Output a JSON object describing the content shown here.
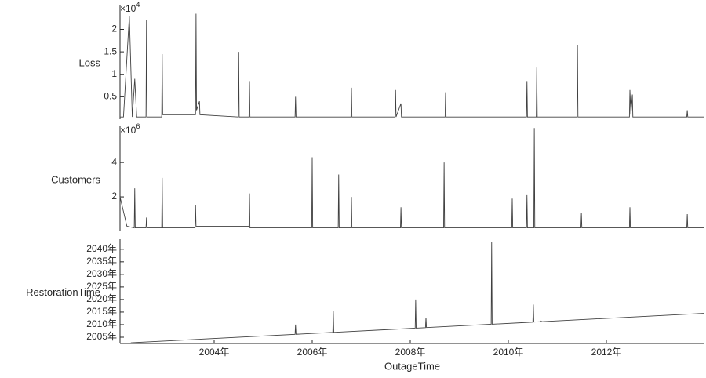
{
  "chart_data": [
    {
      "type": "line",
      "y_label": "Loss",
      "exponent": {
        "base": "×10",
        "power": "4"
      },
      "color": "#404040",
      "xlim": [
        2002.08,
        2014.0
      ],
      "ylim": [
        0,
        2.55
      ],
      "yticks": [
        0.5,
        1,
        1.5,
        2
      ],
      "x": [
        2002.08,
        2002.15,
        2002.27,
        2002.33,
        2002.38,
        2002.42,
        2002.61,
        2002.62,
        2002.63,
        2002.93,
        2002.94,
        2002.95,
        2003.62,
        2003.63,
        2003.64,
        2003.7,
        2003.71,
        2004.49,
        2004.5,
        2004.51,
        2004.71,
        2004.72,
        2004.73,
        2005.65,
        2005.66,
        2005.67,
        2006.79,
        2006.8,
        2006.81,
        2007.69,
        2007.7,
        2007.71,
        2007.81,
        2007.82,
        2008.71,
        2008.72,
        2008.73,
        2010.37,
        2010.38,
        2010.39,
        2010.57,
        2010.58,
        2010.59,
        2011.4,
        2011.41,
        2011.42,
        2012.47,
        2012.48,
        2012.5,
        2012.53,
        2012.54,
        2013.64,
        2013.65,
        2013.66,
        2014.0
      ],
      "values": [
        0.05,
        0.05,
        2.3,
        0.05,
        0.9,
        0.05,
        0.05,
        2.2,
        0.05,
        0.05,
        1.45,
        0.1,
        0.1,
        2.35,
        0.2,
        0.4,
        0.1,
        0.05,
        1.5,
        0.05,
        0.05,
        0.85,
        0.05,
        0.05,
        0.5,
        0.05,
        0.05,
        0.7,
        0.05,
        0.05,
        0.65,
        0.05,
        0.35,
        0.05,
        0.05,
        0.6,
        0.05,
        0.05,
        0.85,
        0.05,
        0.05,
        1.15,
        0.05,
        0.05,
        1.65,
        0.05,
        0.05,
        0.65,
        0.1,
        0.55,
        0.05,
        0.05,
        0.2,
        0.05,
        0.05
      ]
    },
    {
      "type": "line",
      "y_label": "Customers",
      "exponent": {
        "base": "×10",
        "power": "6"
      },
      "color": "#404040",
      "xlim": [
        2002.08,
        2014.0
      ],
      "ylim": [
        0,
        6.1
      ],
      "yticks": [
        2,
        4
      ],
      "x": [
        2002.08,
        2002.22,
        2002.37,
        2002.38,
        2002.39,
        2002.61,
        2002.62,
        2002.63,
        2002.93,
        2002.94,
        2002.95,
        2003.61,
        2003.62,
        2003.63,
        2004.71,
        2004.72,
        2004.73,
        2005.99,
        2006.0,
        2006.01,
        2006.53,
        2006.54,
        2006.55,
        2006.79,
        2006.8,
        2006.81,
        2007.8,
        2007.81,
        2007.82,
        2008.68,
        2008.69,
        2008.7,
        2010.07,
        2010.08,
        2010.09,
        2010.37,
        2010.38,
        2010.39,
        2010.52,
        2010.53,
        2010.54,
        2011.48,
        2011.49,
        2011.5,
        2012.47,
        2012.48,
        2012.49,
        2013.64,
        2013.65,
        2013.66,
        2014.0
      ],
      "values": [
        2.0,
        0.3,
        0.2,
        2.5,
        0.2,
        0.2,
        0.8,
        0.2,
        0.2,
        3.1,
        0.2,
        0.2,
        1.5,
        0.3,
        0.3,
        2.2,
        0.2,
        0.2,
        4.3,
        0.2,
        0.2,
        3.3,
        0.2,
        0.2,
        2.0,
        0.2,
        0.2,
        1.4,
        0.2,
        0.2,
        4.0,
        0.2,
        0.2,
        1.9,
        0.2,
        0.2,
        2.1,
        0.2,
        0.2,
        6.0,
        0.2,
        0.2,
        1.05,
        0.2,
        0.2,
        1.4,
        0.2,
        0.2,
        1.0,
        0.2,
        0.2
      ]
    },
    {
      "type": "line",
      "y_label": "RestorationTime",
      "x_label": "OutageTime",
      "color": "#404040",
      "xlim": [
        2002.08,
        2014.0
      ],
      "ylim": [
        2002.5,
        2044
      ],
      "yticks": [
        {
          "value": 2005,
          "label": "2005年"
        },
        {
          "value": 2010,
          "label": "2010年"
        },
        {
          "value": 2015,
          "label": "2015年"
        },
        {
          "value": 2020,
          "label": "2020年"
        },
        {
          "value": 2025,
          "label": "2025年"
        },
        {
          "value": 2030,
          "label": "2030年"
        },
        {
          "value": 2035,
          "label": "2035年"
        },
        {
          "value": 2040,
          "label": "2040年"
        }
      ],
      "xticks": [
        {
          "value": 2004,
          "label": "2004年"
        },
        {
          "value": 2006,
          "label": "2006年"
        },
        {
          "value": 2008,
          "label": "2008年"
        },
        {
          "value": 2010,
          "label": "2010年"
        },
        {
          "value": 2012,
          "label": "2012年"
        }
      ],
      "x": [
        2002.3,
        2005.65,
        2005.66,
        2005.67,
        2006.42,
        2006.43,
        2006.44,
        2008.1,
        2008.11,
        2008.12,
        2008.31,
        2008.32,
        2008.33,
        2009.65,
        2009.66,
        2009.67,
        2010.5,
        2010.51,
        2010.52,
        2010.66,
        2010.67,
        2010.68,
        2014.0
      ],
      "values": [
        2002.8,
        2006.15,
        2010.0,
        2006.17,
        2006.92,
        2015.3,
        2006.94,
        2008.6,
        2020.0,
        2008.62,
        2008.81,
        2012.8,
        2008.83,
        2010.15,
        2043.0,
        2010.17,
        2011.0,
        2018.0,
        2011.02,
        2011.16,
        2011.4,
        2011.18,
        2014.5
      ]
    }
  ]
}
